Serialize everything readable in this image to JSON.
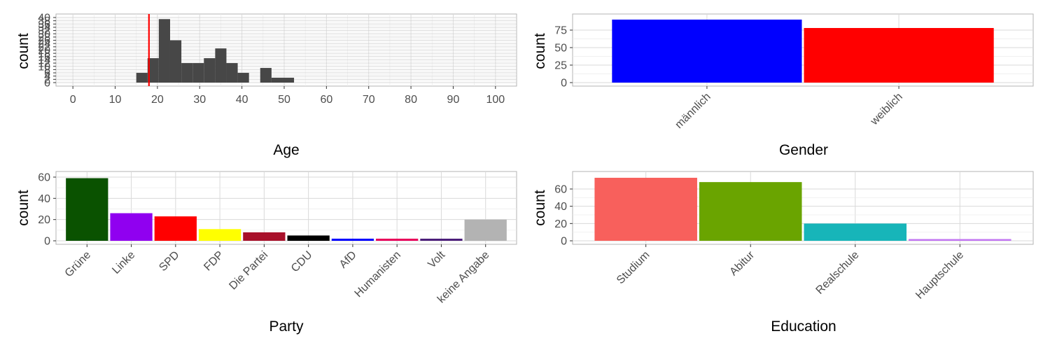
{
  "chart_data": [
    {
      "id": "age",
      "type": "histogram",
      "xlabel": "Age",
      "ylabel": "count",
      "xlim": [
        -4,
        105
      ],
      "ylim": [
        0,
        40
      ],
      "x_ticks": [
        0,
        10,
        20,
        30,
        40,
        50,
        60,
        70,
        80,
        90,
        100
      ],
      "y_ticks": [
        0,
        2,
        4,
        6,
        8,
        10,
        12,
        14,
        16,
        18,
        20,
        22,
        24,
        26,
        28,
        30,
        32,
        34,
        36,
        38,
        40
      ],
      "y_tick_labels": [
        "0",
        "2",
        "4",
        "6",
        "8",
        "10",
        "12",
        "14",
        "16",
        "18",
        "20",
        "22",
        "24",
        "26",
        "28",
        "30",
        "32",
        "34",
        "36",
        "38",
        "40"
      ],
      "bar_color": "#474747",
      "bins": [
        {
          "x0": 15,
          "x1": 17.67,
          "count": 6
        },
        {
          "x0": 17.67,
          "x1": 20.33,
          "count": 15
        },
        {
          "x0": 20.33,
          "x1": 23,
          "count": 39
        },
        {
          "x0": 23,
          "x1": 25.67,
          "count": 26
        },
        {
          "x0": 25.67,
          "x1": 28.33,
          "count": 12
        },
        {
          "x0": 28.33,
          "x1": 31,
          "count": 12
        },
        {
          "x0": 31,
          "x1": 33.67,
          "count": 15
        },
        {
          "x0": 33.67,
          "x1": 36.33,
          "count": 21
        },
        {
          "x0": 36.33,
          "x1": 39,
          "count": 12
        },
        {
          "x0": 39,
          "x1": 41.67,
          "count": 6
        },
        {
          "x0": 41.67,
          "x1": 44.33,
          "count": 0
        },
        {
          "x0": 44.33,
          "x1": 47,
          "count": 9
        },
        {
          "x0": 47,
          "x1": 49.67,
          "count": 3
        },
        {
          "x0": 49.67,
          "x1": 52.33,
          "count": 3
        }
      ],
      "reference_line": {
        "x": 18,
        "color": "#ff0000"
      },
      "grid": true
    },
    {
      "id": "gender",
      "type": "bar",
      "xlabel": "Gender",
      "ylabel": "count",
      "categories": [
        "männlich",
        "weiblich"
      ],
      "values": [
        90,
        78
      ],
      "colors": [
        "#0000ff",
        "#ff0000"
      ],
      "ylim": [
        -4,
        94
      ],
      "y_ticks": [
        0,
        25,
        50,
        75
      ],
      "y_tick_labels": [
        "0",
        "25",
        "50",
        "75"
      ],
      "grid": true
    },
    {
      "id": "party",
      "type": "bar",
      "xlabel": "Party",
      "ylabel": "count",
      "categories": [
        "Grüne",
        "Linke",
        "SPD",
        "FDP",
        "Die Partei",
        "CDU",
        "AfD",
        "Humanisten",
        "Volt",
        "keine Angabe"
      ],
      "values": [
        59,
        26,
        23,
        11,
        8,
        5,
        2,
        2,
        2,
        20
      ],
      "colors": [
        "#0a5200",
        "#9000f0",
        "#ff0000",
        "#ffff00",
        "#a8102a",
        "#000000",
        "#0000ff",
        "#e8005a",
        "#4b1e7a",
        "#b3b3b3"
      ],
      "ylim": [
        -3,
        62
      ],
      "y_ticks": [
        0,
        20,
        40,
        60
      ],
      "y_tick_labels": [
        "0",
        "20",
        "40",
        "60"
      ],
      "grid": true
    },
    {
      "id": "education",
      "type": "bar",
      "xlabel": "Education",
      "ylabel": "count",
      "categories": [
        "Studium",
        "Abitur",
        "Realschule",
        "Hauptschule"
      ],
      "values": [
        73,
        68,
        20,
        2
      ],
      "colors": [
        "#f8605c",
        "#6aa400",
        "#17b5b9",
        "#c276f2"
      ],
      "ylim": [
        -4,
        78
      ],
      "y_ticks": [
        0,
        20,
        40,
        60
      ],
      "y_tick_labels": [
        "0",
        "20",
        "40",
        "60"
      ],
      "grid": true
    }
  ]
}
